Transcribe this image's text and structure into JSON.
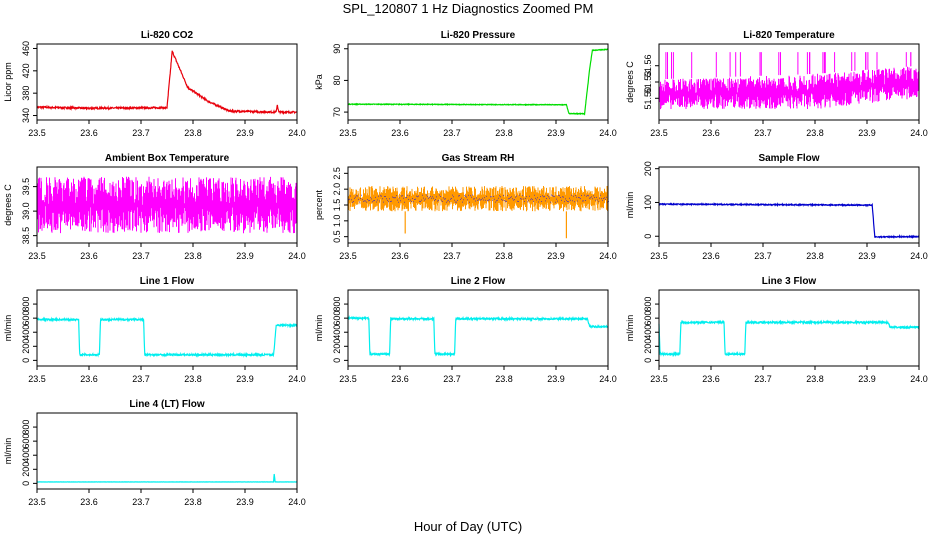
{
  "page_title": "SPL_120807  1 Hz Diagnostics Zoomed PM",
  "xlabel": "Hour of Day (UTC)",
  "chart_data": [
    {
      "type": "line",
      "title": "Li-820 CO2",
      "ylabel": "Licor ppm",
      "color": "#e8000b",
      "xlim": [
        23.5,
        24.0
      ],
      "x_ticks": [
        23.5,
        23.6,
        23.7,
        23.8,
        23.9,
        24.0
      ],
      "ylim": [
        332,
        468
      ],
      "y_ticks": [
        340,
        380,
        420,
        460
      ],
      "series": [
        {
          "noise": 1.5,
          "steps": [
            [
              23.5,
              355
            ],
            [
              23.6,
              353
            ],
            [
              23.75,
              354
            ],
            [
              23.76,
              455
            ],
            [
              23.79,
              390
            ],
            [
              23.83,
              365
            ],
            [
              23.87,
              348
            ],
            [
              23.96,
              346
            ],
            [
              23.962,
              360
            ],
            [
              23.965,
              346
            ],
            [
              24.0,
              346
            ]
          ]
        }
      ]
    },
    {
      "type": "line",
      "title": "Li-820 Pressure",
      "ylabel": "kPa",
      "color": "#00dd00",
      "xlim": [
        23.5,
        24.0
      ],
      "x_ticks": [
        23.5,
        23.6,
        23.7,
        23.8,
        23.9,
        24.0
      ],
      "ylim": [
        67.5,
        91.5
      ],
      "y_ticks": [
        70,
        80,
        90
      ],
      "series": [
        {
          "noise": 0.1,
          "steps": [
            [
              23.5,
              72.5
            ],
            [
              23.92,
              72.3
            ],
            [
              23.925,
              69.5
            ],
            [
              23.955,
              69.5
            ],
            [
              23.965,
              84
            ],
            [
              23.97,
              89.5
            ],
            [
              24.0,
              89.8
            ]
          ]
        }
      ]
    },
    {
      "type": "line",
      "title": "Li-820 Temperature",
      "ylabel": "degrees C",
      "color": "#ff00ff",
      "xlim": [
        23.5,
        24.0
      ],
      "x_ticks": [
        23.5,
        23.6,
        23.7,
        23.8,
        23.9,
        24.0
      ],
      "ylim": [
        51.46,
        51.6
      ],
      "y_ticks": [
        51.5,
        51.53,
        51.56
      ],
      "series": [
        {
          "band": [
            [
              23.5,
              51.48,
              51.535
            ],
            [
              23.8,
              51.48,
              51.545
            ],
            [
              24.0,
              51.5,
              51.56
            ]
          ],
          "spike_high": 51.585
        }
      ]
    },
    {
      "type": "line",
      "title": "Ambient Box Temperature",
      "ylabel": "degrees C",
      "color": "#ff00ff",
      "xlim": [
        23.5,
        24.0
      ],
      "x_ticks": [
        23.5,
        23.6,
        23.7,
        23.8,
        23.9,
        24.0
      ],
      "ylim": [
        38.35,
        39.9
      ],
      "y_ticks": [
        38.5,
        39.0,
        39.5
      ],
      "series": [
        {
          "band": [
            [
              23.5,
              38.55,
              39.7
            ],
            [
              24.0,
              38.55,
              39.7
            ]
          ]
        }
      ]
    },
    {
      "type": "line",
      "title": "Gas Stream RH",
      "ylabel": "percent",
      "color": "#ff9900",
      "color2": "#0000ff",
      "xlim": [
        23.5,
        24.0
      ],
      "x_ticks": [
        23.5,
        23.6,
        23.7,
        23.8,
        23.9,
        24.0
      ],
      "ylim": [
        0.3,
        2.7
      ],
      "y_ticks": [
        0.5,
        1.0,
        1.5,
        2.0,
        2.5
      ],
      "series": [
        {
          "band": [
            [
              23.5,
              1.3,
              2.1
            ],
            [
              24.0,
              1.3,
              2.1
            ]
          ],
          "dips": [
            [
              23.61,
              0.6
            ],
            [
              23.92,
              0.45
            ]
          ]
        }
      ]
    },
    {
      "type": "line",
      "title": "Sample Flow",
      "ylabel": "ml/min",
      "color": "#0000cc",
      "xlim": [
        23.5,
        24.0
      ],
      "x_ticks": [
        23.5,
        23.6,
        23.7,
        23.8,
        23.9,
        24.0
      ],
      "ylim": [
        -20,
        205
      ],
      "y_ticks": [
        0,
        100,
        200
      ],
      "series": [
        {
          "noise": 1.5,
          "steps": [
            [
              23.5,
              95
            ],
            [
              23.8,
              93
            ],
            [
              23.91,
              92
            ],
            [
              23.915,
              -2
            ],
            [
              24.0,
              -1
            ]
          ]
        }
      ]
    },
    {
      "type": "line",
      "title": "Line 1 Flow",
      "ylabel": "ml/min",
      "color": "#00eeee",
      "xlim": [
        23.5,
        24.0
      ],
      "x_ticks": [
        23.5,
        23.6,
        23.7,
        23.8,
        23.9,
        24.0
      ],
      "ylim": [
        -80,
        1000
      ],
      "y_ticks": [
        0,
        200,
        400,
        600,
        800
      ],
      "series": [
        {
          "noise": 12,
          "steps": [
            [
              23.5,
              580
            ],
            [
              23.58,
              580
            ],
            [
              23.582,
              80
            ],
            [
              23.62,
              80
            ],
            [
              23.622,
              580
            ],
            [
              23.705,
              580
            ],
            [
              23.707,
              80
            ],
            [
              23.955,
              80
            ],
            [
              23.96,
              500
            ],
            [
              24.0,
              500
            ]
          ]
        }
      ]
    },
    {
      "type": "line",
      "title": "Line 2 Flow",
      "ylabel": "ml/min",
      "color": "#00eeee",
      "xlim": [
        23.5,
        24.0
      ],
      "x_ticks": [
        23.5,
        23.6,
        23.7,
        23.8,
        23.9,
        24.0
      ],
      "ylim": [
        -80,
        1000
      ],
      "y_ticks": [
        0,
        200,
        400,
        600,
        800
      ],
      "series": [
        {
          "noise": 12,
          "steps": [
            [
              23.5,
              600
            ],
            [
              23.54,
              600
            ],
            [
              23.542,
              90
            ],
            [
              23.58,
              90
            ],
            [
              23.582,
              590
            ],
            [
              23.665,
              590
            ],
            [
              23.667,
              90
            ],
            [
              23.705,
              90
            ],
            [
              23.707,
              590
            ],
            [
              23.96,
              590
            ],
            [
              23.965,
              480
            ],
            [
              24.0,
              480
            ]
          ]
        }
      ]
    },
    {
      "type": "line",
      "title": "Line 3 Flow",
      "ylabel": "ml/min",
      "color": "#00eeee",
      "xlim": [
        23.5,
        24.0
      ],
      "x_ticks": [
        23.5,
        23.6,
        23.7,
        23.8,
        23.9,
        24.0
      ],
      "ylim": [
        -80,
        1000
      ],
      "y_ticks": [
        0,
        200,
        400,
        600,
        800
      ],
      "series": [
        {
          "noise": 12,
          "steps": [
            [
              23.5,
              520
            ],
            [
              23.502,
              90
            ],
            [
              23.54,
              90
            ],
            [
              23.542,
              540
            ],
            [
              23.625,
              540
            ],
            [
              23.627,
              90
            ],
            [
              23.665,
              90
            ],
            [
              23.667,
              540
            ],
            [
              23.94,
              540
            ],
            [
              23.945,
              470
            ],
            [
              24.0,
              470
            ]
          ]
        }
      ]
    },
    {
      "type": "line",
      "title": "Line 4 (LT) Flow",
      "ylabel": "ml/min",
      "color": "#00eeee",
      "xlim": [
        23.5,
        24.0
      ],
      "x_ticks": [
        23.5,
        23.6,
        23.7,
        23.8,
        23.9,
        24.0
      ],
      "ylim": [
        -80,
        1000
      ],
      "y_ticks": [
        0,
        200,
        400,
        600,
        800
      ],
      "series": [
        {
          "noise": 1,
          "steps": [
            [
              23.5,
              20
            ],
            [
              23.955,
              20
            ],
            [
              23.956,
              140
            ],
            [
              23.958,
              20
            ],
            [
              24.0,
              20
            ]
          ]
        }
      ]
    }
  ]
}
